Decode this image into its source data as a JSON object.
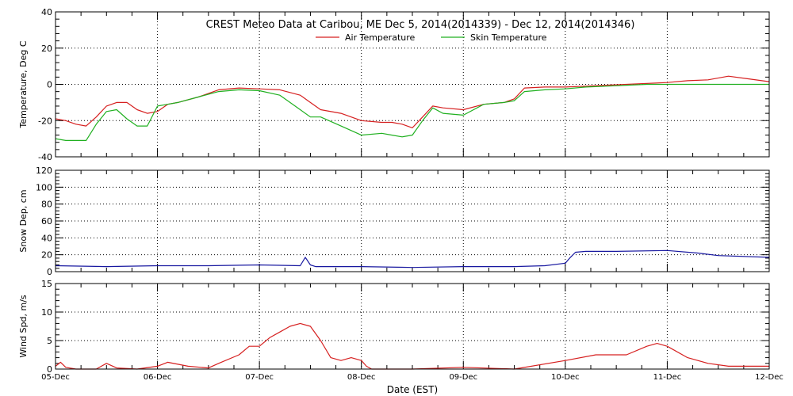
{
  "chart_data": {
    "title": "CREST Meteo Data at Caribou, ME   Dec  5, 2014(2014339) - Dec 12, 2014(2014346)",
    "x_label": "Date (EST)",
    "x_ticks": [
      "05-Dec",
      "06-Dec",
      "07-Dec",
      "08-Dec",
      "09-Dec",
      "10-Dec",
      "11-Dec",
      "12-Dec"
    ],
    "x_range_days": [
      0,
      7
    ],
    "grid": true,
    "panels": [
      {
        "type": "line",
        "ylabel": "Temperature, Deg C",
        "ylim": [
          -40,
          40
        ],
        "yticks": [
          -40,
          -20,
          0,
          20,
          40
        ],
        "legend": "top",
        "series": [
          {
            "name": "Air Temperature",
            "color": "#d62020",
            "x": [
              0,
              0.1,
              0.2,
              0.3,
              0.4,
              0.5,
              0.6,
              0.7,
              0.8,
              0.9,
              1.0,
              1.1,
              1.2,
              1.4,
              1.6,
              1.8,
              2.0,
              2.2,
              2.4,
              2.5,
              2.6,
              2.8,
              3.0,
              3.2,
              3.3,
              3.4,
              3.5,
              3.6,
              3.7,
              3.8,
              4.0,
              4.2,
              4.4,
              4.5,
              4.6,
              4.8,
              5.0,
              5.2,
              5.4,
              5.6,
              5.8,
              6.0,
              6.2,
              6.4,
              6.6,
              6.8,
              7.0
            ],
            "values": [
              -19,
              -20,
              -22,
              -23,
              -18,
              -12,
              -10,
              -10,
              -14,
              -16,
              -15,
              -11,
              -10,
              -7,
              -3,
              -2,
              -2.5,
              -3,
              -6,
              -10,
              -14,
              -16,
              -20,
              -21,
              -21,
              -22,
              -24,
              -18,
              -12,
              -13,
              -14,
              -11,
              -10,
              -8,
              -2,
              -1.5,
              -1.5,
              -1,
              -0.5,
              0,
              0.5,
              1,
              2,
              2.5,
              4.5,
              3,
              1.5
            ]
          },
          {
            "name": "Skin Temperature",
            "color": "#20b020",
            "x": [
              0,
              0.1,
              0.2,
              0.3,
              0.4,
              0.5,
              0.6,
              0.7,
              0.8,
              0.9,
              1.0,
              1.1,
              1.2,
              1.4,
              1.6,
              1.8,
              2.0,
              2.2,
              2.4,
              2.5,
              2.6,
              2.8,
              3.0,
              3.2,
              3.3,
              3.4,
              3.5,
              3.6,
              3.7,
              3.8,
              4.0,
              4.2,
              4.4,
              4.5,
              4.6,
              4.8,
              5.0,
              5.2,
              5.4,
              5.6,
              5.8,
              6.0,
              6.2,
              6.4,
              6.6,
              6.8,
              7.0
            ],
            "values": [
              -30,
              -31,
              -31,
              -31,
              -22,
              -15,
              -14,
              -19,
              -23,
              -23,
              -12,
              -11,
              -10,
              -7,
              -4,
              -3,
              -3.5,
              -6,
              -14,
              -18,
              -18,
              -23,
              -28,
              -27,
              -28,
              -29,
              -28,
              -20,
              -13,
              -16,
              -17,
              -11,
              -10,
              -9,
              -4,
              -3,
              -2.5,
              -1.5,
              -1,
              -0.5,
              0,
              0,
              0,
              0,
              0,
              0,
              0
            ]
          }
        ]
      },
      {
        "type": "line",
        "ylabel": "Snow Dep, cm",
        "ylim": [
          0,
          120
        ],
        "yticks": [
          0,
          20,
          40,
          60,
          80,
          100,
          120
        ],
        "series": [
          {
            "color": "#1818a0",
            "x": [
              0,
              0.5,
              1.0,
              1.5,
              2.0,
              2.4,
              2.45,
              2.5,
              2.55,
              3.0,
              3.5,
              4.0,
              4.5,
              4.8,
              5.0,
              5.05,
              5.1,
              5.2,
              5.5,
              6.0,
              6.3,
              6.5,
              7.0
            ],
            "values": [
              7,
              6,
              7,
              7,
              8,
              7,
              17,
              8,
              6,
              6,
              5,
              6,
              6,
              7,
              10,
              17,
              23,
              24,
              24,
              25,
              22,
              19,
              17
            ]
          }
        ]
      },
      {
        "type": "line",
        "ylabel": "Wind Spd, m/s",
        "ylim": [
          0,
          15
        ],
        "yticks": [
          0,
          5,
          10,
          15
        ],
        "series": [
          {
            "color": "#d62020",
            "x": [
              0,
              0.05,
              0.1,
              0.2,
              0.4,
              0.5,
              0.6,
              0.8,
              1.0,
              1.1,
              1.3,
              1.5,
              1.6,
              1.8,
              1.9,
              2.0,
              2.1,
              2.2,
              2.3,
              2.4,
              2.5,
              2.6,
              2.7,
              2.8,
              2.9,
              3.0,
              3.05,
              3.1,
              3.2,
              3.5,
              4.0,
              4.5,
              5.0,
              5.3,
              5.6,
              5.8,
              5.9,
              6.0,
              6.2,
              6.4,
              6.6,
              6.8,
              7.0
            ],
            "values": [
              0.5,
              1.2,
              0.3,
              0,
              0,
              1,
              0.2,
              0,
              0.5,
              1.2,
              0.5,
              0.2,
              1,
              2.5,
              4,
              4,
              5.5,
              6.5,
              7.5,
              8,
              7.5,
              5,
              2,
              1.5,
              2,
              1.5,
              0.5,
              0,
              0,
              0,
              0.3,
              0,
              1.5,
              2.5,
              2.5,
              4,
              4.5,
              4,
              2,
              1,
              0.5,
              0.5,
              0.5
            ]
          }
        ]
      }
    ]
  }
}
